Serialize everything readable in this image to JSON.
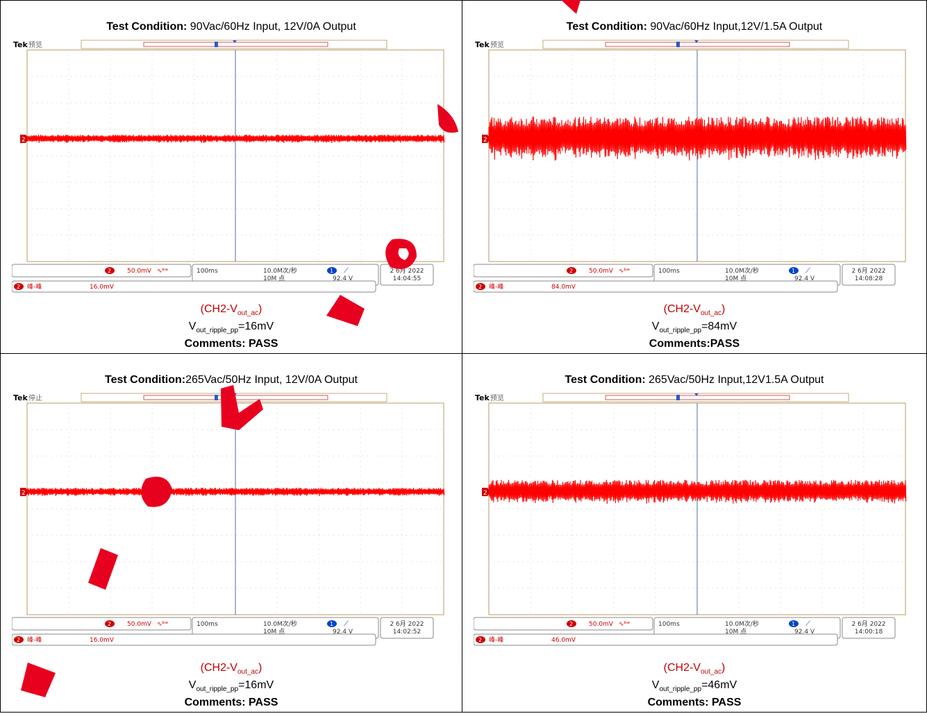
{
  "panels": [
    {
      "cond_label": "Test Condition:",
      "cond_text": " 90Vac/60Hz Input, 12V/0A Output",
      "scope": {
        "brand": "Tek",
        "state": "预览",
        "ch_scale": "50.0mV",
        "timebase": "100ms",
        "sample_rate": "10.0M次/秒",
        "record": "10M 点",
        "trigger_level": "92.4 V",
        "date": "2 6月 2022",
        "time": "14:04:55",
        "meas_label": "峰-峰",
        "meas_value": "16.0mV",
        "ripple_mv": 16
      },
      "cap_channel": "(CH2-V",
      "cap_channel_sub": "out_ac",
      "cap_channel_end": ")",
      "cap_v": "V",
      "cap_v_sub": "out_ripple_pp",
      "cap_v_value": "=16mV",
      "comment": "Comments: PASS"
    },
    {
      "cond_label": "Test Condition:",
      "cond_text": " 90Vac/60Hz Input,12V/1.5A Output",
      "scope": {
        "brand": "Tek",
        "state": "预览",
        "ch_scale": "50.0mV",
        "timebase": "100ms",
        "sample_rate": "10.0M次/秒",
        "record": "10M 点",
        "trigger_level": "92.4 V",
        "date": "2 6月 2022",
        "time": "14:08:28",
        "meas_label": "峰-峰",
        "meas_value": "84.0mV",
        "ripple_mv": 84
      },
      "cap_channel": "(CH2-V",
      "cap_channel_sub": "out_ac",
      "cap_channel_end": ")",
      "cap_v": "V",
      "cap_v_sub": "out_ripple_pp",
      "cap_v_value": "=84mV",
      "comment": "Comments:PASS"
    },
    {
      "cond_label": "Test Condition:",
      "cond_text": "265Vac/50Hz Input, 12V/0A Output",
      "scope": {
        "brand": "Tek",
        "state": "停止",
        "ch_scale": "50.0mV",
        "timebase": "100ms",
        "sample_rate": "10.0M次/秒",
        "record": "10M 点",
        "trigger_level": "92.4 V",
        "date": "2 6月 2022",
        "time": "14:02:52",
        "meas_label": "峰-峰",
        "meas_value": "16.0mV",
        "ripple_mv": 16
      },
      "cap_channel": "(CH2-V",
      "cap_channel_sub": "out_ac",
      "cap_channel_end": ")",
      "cap_v": "V",
      "cap_v_sub": "out_ripple_pp",
      "cap_v_value": "=16mV",
      "comment": "Comments: PASS"
    },
    {
      "cond_label": "Test Condition:",
      "cond_text": " 265Vac/50Hz Input,12V1.5A Output",
      "scope": {
        "brand": "Tek",
        "state": "预览",
        "ch_scale": "50.0mV",
        "timebase": "100ms",
        "sample_rate": "10.0M次/秒",
        "record": "10M 点",
        "trigger_level": "92.4 V",
        "date": "2 6月 2022",
        "time": "14:00:18",
        "meas_label": "峰-峰",
        "meas_value": "46.0mV",
        "ripple_mv": 46
      },
      "cap_channel": "(CH2-V",
      "cap_channel_sub": "out_ac",
      "cap_channel_end": ")",
      "cap_v": "V",
      "cap_v_sub": "out_ripple_pp",
      "cap_v_value": "=46mV",
      "comment": "Comments: PASS"
    }
  ],
  "colors": {
    "trace": "#ff0000",
    "grid_border": "#c8a97a",
    "scope_text": "#333333",
    "channel_badge": "#d00000",
    "trigger_badge": "#0044cc",
    "watermark": "#e8001f"
  }
}
